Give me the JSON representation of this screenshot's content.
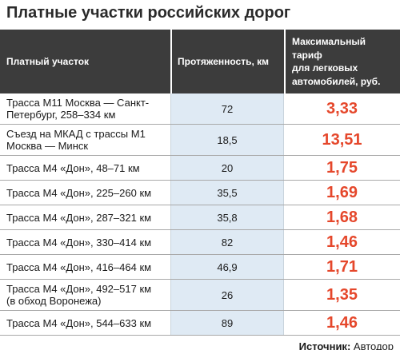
{
  "colors": {
    "header_background": "#3c3c3c",
    "length_column_background": "#dfeaf4",
    "tariff_text": "#e5472b"
  },
  "chart_data": {
    "type": "table",
    "title": "Платные участки российских дорог",
    "columns": [
      "Платный участок",
      "Протяженность, км",
      "Максимальный\nтариф\nдля легковых\nавтомобилей, руб."
    ],
    "rows": [
      {
        "section": "Трасса М11 Москва — Санкт-Петербург, 258–334 км",
        "length_km": "72",
        "tariff_rub": "3,33"
      },
      {
        "section": "Съезд на МКАД с трассы М1 Москва — Минск",
        "length_km": "18,5",
        "tariff_rub": "13,51"
      },
      {
        "section": "Трасса М4 «Дон», 48–71 км",
        "length_km": "20",
        "tariff_rub": "1,75"
      },
      {
        "section": "Трасса М4 «Дон», 225–260 км",
        "length_km": "35,5",
        "tariff_rub": "1,69"
      },
      {
        "section": "Трасса М4 «Дон», 287–321 км",
        "length_km": "35,8",
        "tariff_rub": "1,68"
      },
      {
        "section": "Трасса М4 «Дон», 330–414 км",
        "length_km": "82",
        "tariff_rub": "1,46"
      },
      {
        "section": "Трасса М4 «Дон», 416–464 км",
        "length_km": "46,9",
        "tariff_rub": "1,71"
      },
      {
        "section": "Трасса М4 «Дон», 492–517 км (в обход Воронежа)",
        "length_km": "26",
        "tariff_rub": "1,35"
      },
      {
        "section": "Трасса М4 «Дон», 544–633 км",
        "length_km": "89",
        "tariff_rub": "1,46"
      }
    ]
  },
  "source": {
    "label": "Источник:",
    "value": "Автодор"
  }
}
